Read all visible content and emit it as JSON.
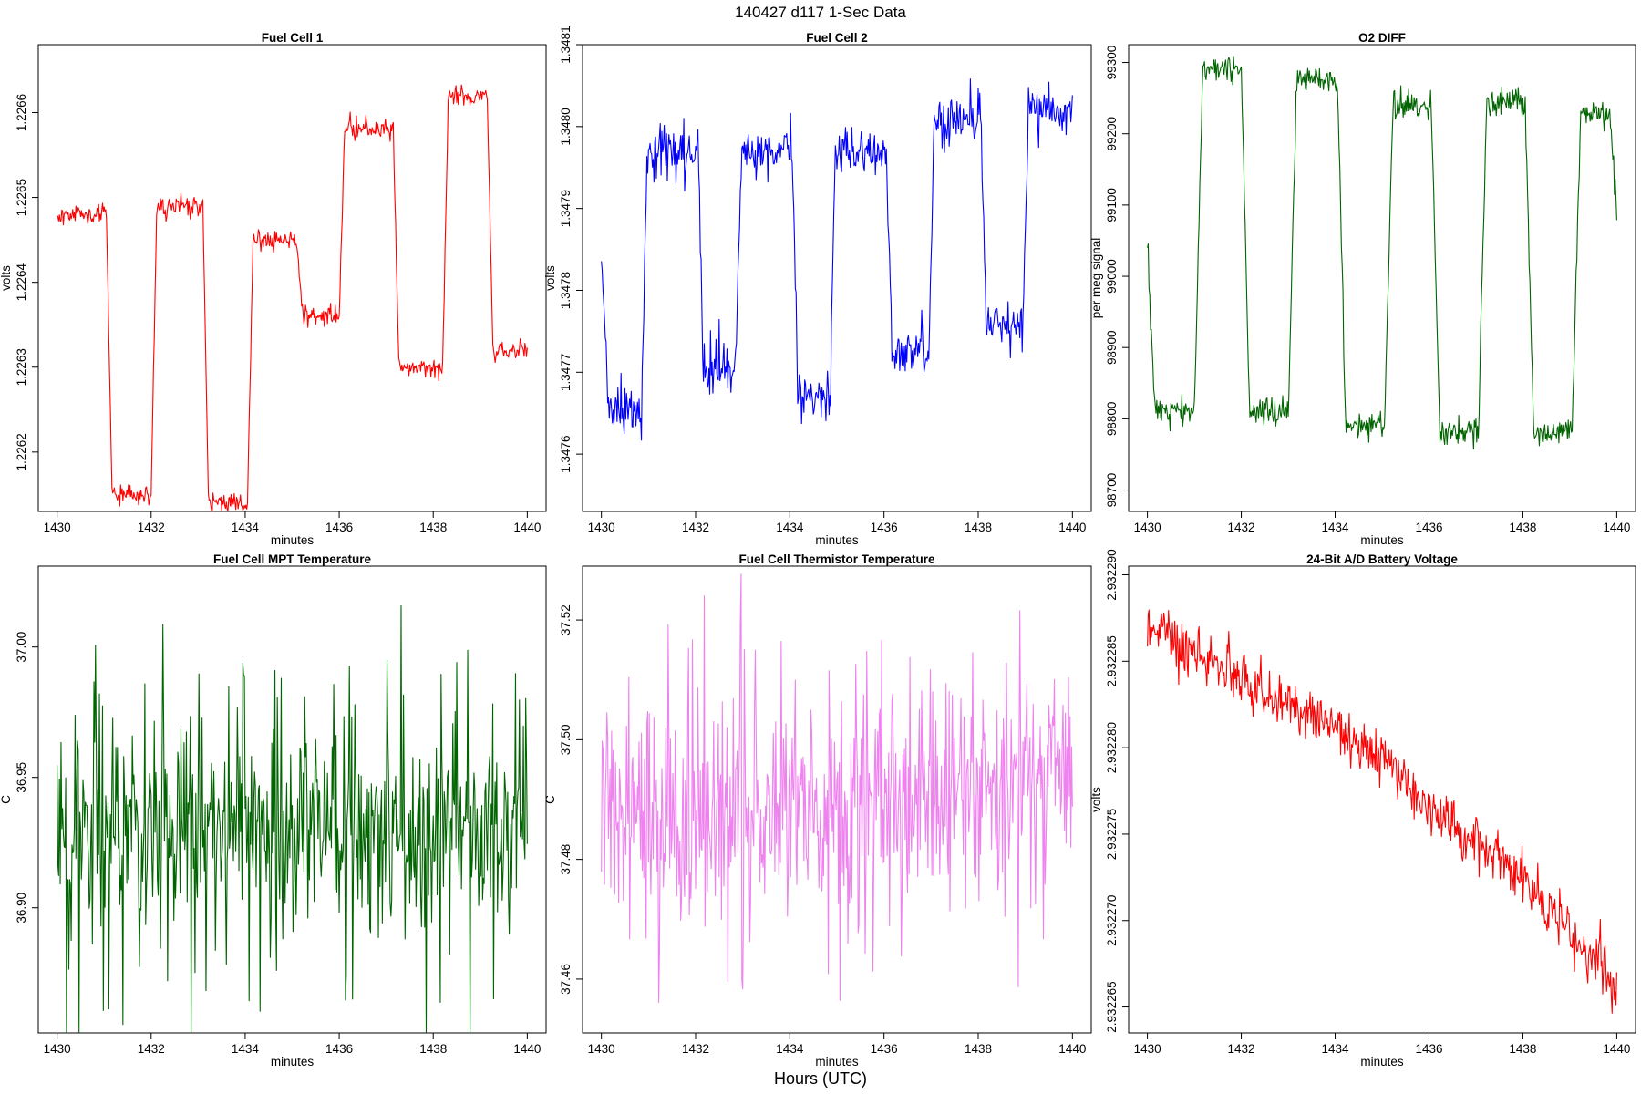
{
  "page": {
    "title": "140427   d117   1-Sec Data",
    "xlabel": "Hours (UTC)"
  },
  "chart_data": [
    {
      "type": "line",
      "title": "Fuel Cell 1",
      "xlabel": "minutes",
      "ylabel": "volts",
      "color": "#ff0000",
      "xlim": [
        1429.6,
        1440.4
      ],
      "ylim": [
        1.22613,
        1.22668
      ],
      "xticks": [
        1430,
        1432,
        1434,
        1436,
        1438,
        1440
      ],
      "yticks": [
        1.2262,
        1.2263,
        1.2264,
        1.2265,
        1.2266
      ],
      "ytick_labels": [
        "1.2262",
        "1.2263",
        "1.2264",
        "1.2265",
        "1.2266"
      ],
      "gen": {
        "kind": "square",
        "seed": 11,
        "noise": 5.5e-06,
        "spike": 4.5e-06,
        "segments": [
          [
            1430,
            1.22648
          ],
          [
            1431.05,
            1.22615
          ],
          [
            1432.0,
            1.22649
          ],
          [
            1433.1,
            1.22614
          ],
          [
            1434.05,
            1.22645
          ],
          [
            1435.1,
            1.22636
          ],
          [
            1436.0,
            1.22658
          ],
          [
            1437.15,
            1.2263
          ],
          [
            1438.2,
            1.22662
          ],
          [
            1439.15,
            1.22632
          ]
        ],
        "trend": [
          [
            1430,
            0
          ],
          [
            1431.0,
            -1.35e-05
          ],
          [
            1431.05,
            0
          ]
        ]
      }
    },
    {
      "type": "line",
      "title": "Fuel Cell 2",
      "xlabel": "minutes",
      "ylabel": "volts",
      "color": "#0000ff",
      "xlim": [
        1429.6,
        1440.4
      ],
      "ylim": [
        1.34753,
        1.3481
      ],
      "xticks": [
        1430,
        1432,
        1434,
        1436,
        1438,
        1440
      ],
      "yticks": [
        1.3476,
        1.3477,
        1.3478,
        1.3479,
        1.348,
        1.3481
      ],
      "ytick_labels": [
        "1.3476",
        "1.3477",
        "1.3478",
        "1.3479",
        "1.3480",
        "1.3481"
      ],
      "gen": {
        "kind": "square",
        "seed": 23,
        "noise": 1.3e-05,
        "spike": 2e-05,
        "segments": [
          [
            1430,
            1.34765
          ],
          [
            1430.85,
            1.34797
          ],
          [
            1432.05,
            1.3477
          ],
          [
            1432.85,
            1.34797
          ],
          [
            1434.05,
            1.34767
          ],
          [
            1434.85,
            1.34797
          ],
          [
            1436.05,
            1.34772
          ],
          [
            1436.95,
            1.34801
          ],
          [
            1438.05,
            1.34776
          ],
          [
            1438.95,
            1.34802
          ]
        ],
        "start": 1.34785
      }
    },
    {
      "type": "line",
      "title": "O2 DIFF",
      "xlabel": "minutes",
      "ylabel": "per meg signal",
      "color": "#006400",
      "xlim": [
        1429.6,
        1440.4
      ],
      "ylim": [
        98670,
        99325
      ],
      "xticks": [
        1430,
        1432,
        1434,
        1436,
        1438,
        1440
      ],
      "yticks": [
        98700,
        98800,
        98900,
        99000,
        99100,
        99200,
        99300
      ],
      "ytick_labels": [
        "98700",
        "98800",
        "98900",
        "99000",
        "99100",
        "99200",
        "99300"
      ],
      "gen": {
        "kind": "square",
        "seed": 37,
        "noise": 9,
        "spike": 10,
        "ramp": 0.18,
        "segments": [
          [
            1430,
            98810
          ],
          [
            1431.0,
            99290
          ],
          [
            1432.0,
            98810
          ],
          [
            1433.0,
            99275
          ],
          [
            1434.05,
            98790
          ],
          [
            1435.05,
            99240
          ],
          [
            1436.05,
            98780
          ],
          [
            1437.05,
            99245
          ],
          [
            1438.05,
            98780
          ],
          [
            1439.05,
            99230
          ]
        ],
        "start": 99050,
        "end": 99090
      }
    },
    {
      "type": "line",
      "title": "Fuel Cell MPT Temperature",
      "xlabel": "minutes",
      "ylabel": "C",
      "color": "#006400",
      "xlim": [
        1429.6,
        1440.4
      ],
      "ylim": [
        36.852,
        37.031
      ],
      "xticks": [
        1430,
        1432,
        1434,
        1436,
        1438,
        1440
      ],
      "yticks": [
        36.9,
        36.95,
        37.0
      ],
      "ytick_labels": [
        "36.90",
        "36.95",
        "37.00"
      ],
      "gen": {
        "kind": "noise",
        "seed": 51,
        "base": 36.93,
        "amp": 0.018,
        "spike": 0.045,
        "spikeRate": 0.16,
        "trend": 0
      }
    },
    {
      "type": "line",
      "title": "Fuel Cell Thermistor Temperature",
      "xlabel": "minutes",
      "ylabel": "C",
      "color": "#ee82ee",
      "xlim": [
        1429.6,
        1440.4
      ],
      "ylim": [
        37.451,
        37.529
      ],
      "xticks": [
        1430,
        1432,
        1434,
        1436,
        1438,
        1440
      ],
      "yticks": [
        37.46,
        37.48,
        37.5,
        37.52
      ],
      "ytick_labels": [
        "37.46",
        "37.48",
        "37.50",
        "37.52"
      ],
      "gen": {
        "kind": "noise",
        "seed": 67,
        "base": 37.4855,
        "amp": 0.0075,
        "spike": 0.017,
        "spikeRate": 0.18,
        "trend": 0.0075
      }
    },
    {
      "type": "line",
      "title": "24-Bit A/D Battery Voltage",
      "xlabel": "minutes",
      "ylabel": "volts",
      "color": "#ff0000",
      "xlim": [
        1429.6,
        1440.4
      ],
      "ylim": [
        2.9322635,
        2.9322905
      ],
      "xticks": [
        1430,
        1432,
        1434,
        1436,
        1438,
        1440
      ],
      "yticks": [
        2.932265,
        2.93227,
        2.932275,
        2.93228,
        2.932285,
        2.93229
      ],
      "ytick_labels": [
        "2.932265",
        "2.932270",
        "2.932275",
        "2.932280",
        "2.932285",
        "2.932290"
      ],
      "gen": {
        "kind": "curve",
        "seed": 79,
        "noise": 7.5e-07,
        "spike": 1.2e-06,
        "points": [
          [
            1430,
            2.932287
          ],
          [
            1432,
            2.932284
          ],
          [
            1434,
            2.932281
          ],
          [
            1435,
            2.9322795
          ],
          [
            1436,
            2.9322765
          ],
          [
            1438,
            2.9322725
          ],
          [
            1440,
            2.932266
          ]
        ]
      }
    }
  ]
}
